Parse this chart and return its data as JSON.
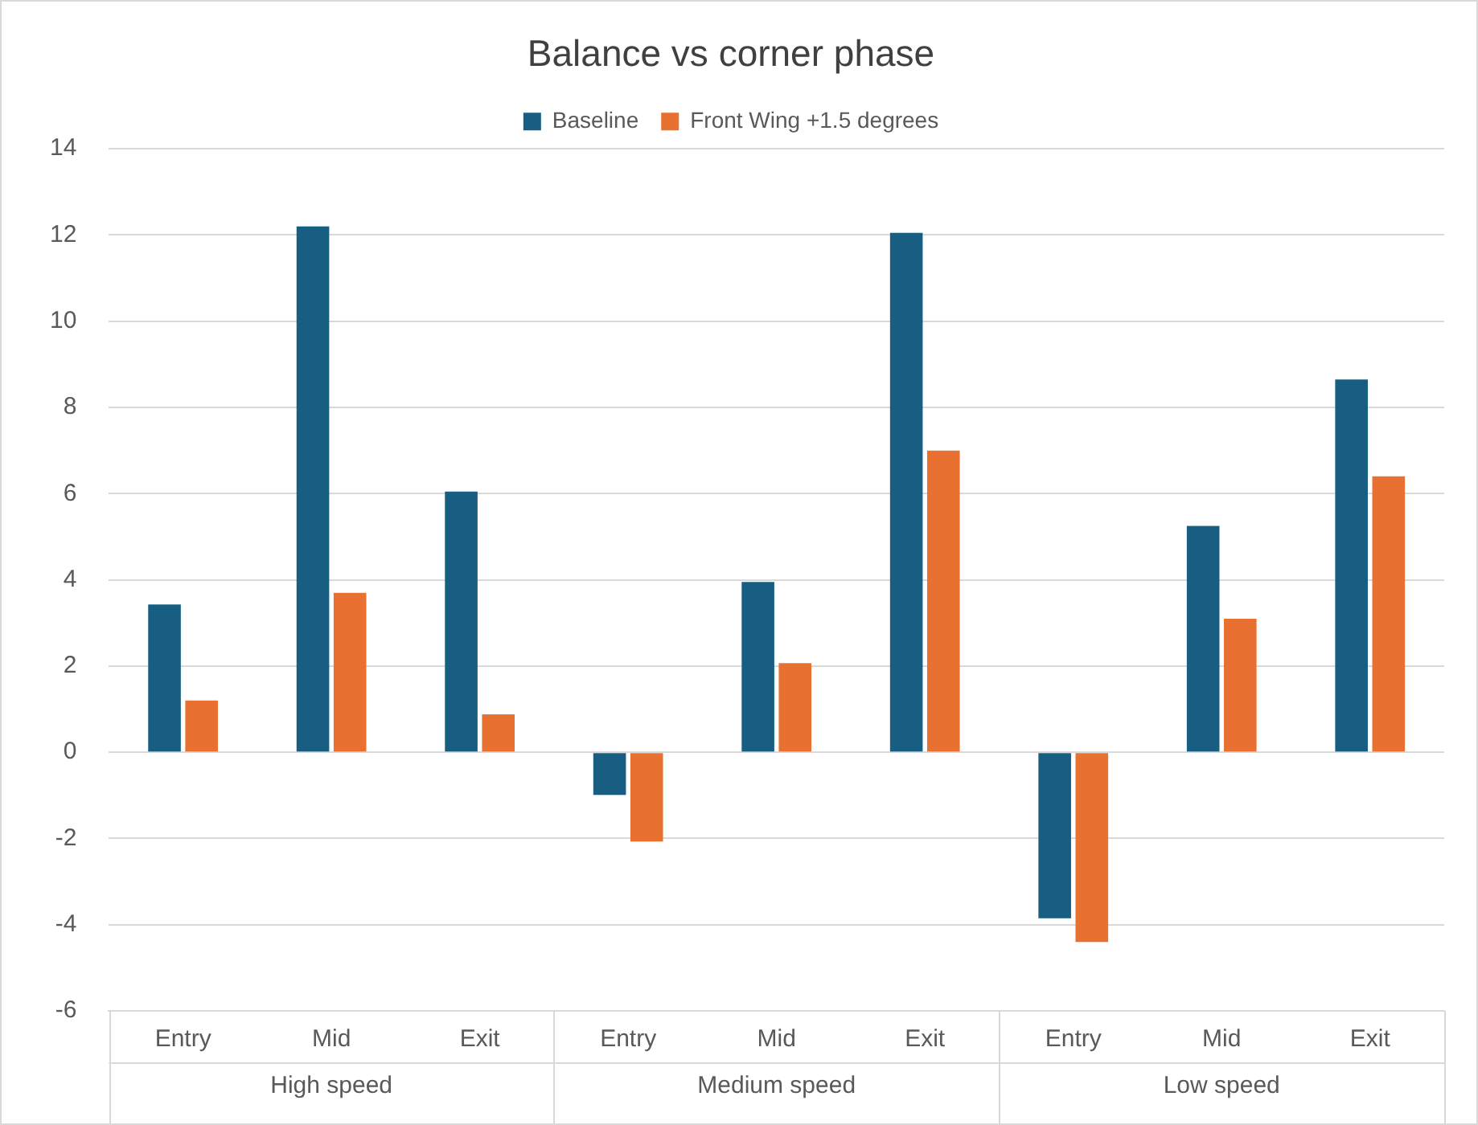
{
  "chart_data": {
    "type": "bar",
    "title": "Balance vs corner phase",
    "categories": [
      "Entry",
      "Mid",
      "Exit",
      "Entry",
      "Mid",
      "Exit",
      "Entry",
      "Mid",
      "Exit"
    ],
    "series": [
      {
        "name": "Baseline",
        "color": "#175e82",
        "values": [
          3.43,
          12.2,
          6.05,
          -0.99,
          3.95,
          12.05,
          -3.85,
          5.25,
          8.65
        ]
      },
      {
        "name": "Front Wing +1.5 degrees",
        "color": "#e87131",
        "values": [
          1.2,
          3.7,
          0.88,
          -2.07,
          2.07,
          7.0,
          -4.4,
          3.1,
          6.4
        ]
      }
    ],
    "annotations": [
      "High speed",
      "Medium speed",
      "Low speed"
    ],
    "ylim": [
      -6,
      14
    ],
    "yticks": [
      -6,
      -4,
      -2,
      0,
      2,
      4,
      6,
      8,
      10,
      12,
      14
    ],
    "grid": "y",
    "legend": "top"
  }
}
